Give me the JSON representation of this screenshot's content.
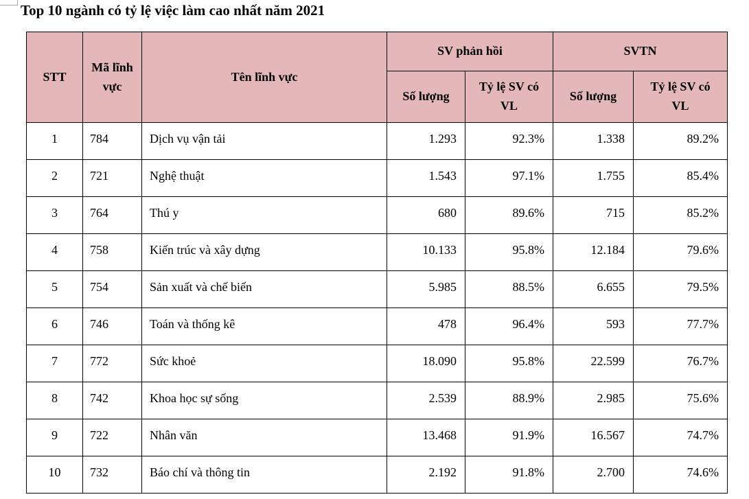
{
  "title": "Top 10 ngành có tỷ lệ việc làm cao nhất năm 2021",
  "table": {
    "headers": {
      "stt": "STT",
      "ma_linh_vuc": "Mã lĩnh vực",
      "ten_linh_vuc": "Tên lĩnh vực",
      "sv_phan_hoi": "SV phản hồi",
      "svtn": "SVTN",
      "so_luong": "Số lượng",
      "ty_le_sv_co_vl": "Tỷ lệ SV có VL"
    },
    "header_bg_color": "#e4b8b8",
    "rows": [
      {
        "stt": "1",
        "code": "784",
        "name": "Dịch vụ vận tải",
        "ph_sl": "1.293",
        "ph_tl": "92.3%",
        "tn_sl": "1.338",
        "tn_tl": "89.2%"
      },
      {
        "stt": "2",
        "code": "721",
        "name": "Nghệ thuật",
        "ph_sl": "1.543",
        "ph_tl": "97.1%",
        "tn_sl": "1.755",
        "tn_tl": "85.4%"
      },
      {
        "stt": "3",
        "code": "764",
        "name": "Thú y",
        "ph_sl": "680",
        "ph_tl": "89.6%",
        "tn_sl": "715",
        "tn_tl": "85.2%"
      },
      {
        "stt": "4",
        "code": "758",
        "name": "Kiến trúc và xây dựng",
        "ph_sl": "10.133",
        "ph_tl": "95.8%",
        "tn_sl": "12.184",
        "tn_tl": "79.6%"
      },
      {
        "stt": "5",
        "code": "754",
        "name": "Sản xuất và chế biến",
        "ph_sl": "5.985",
        "ph_tl": "88.5%",
        "tn_sl": "6.655",
        "tn_tl": "79.5%"
      },
      {
        "stt": "6",
        "code": "746",
        "name": "Toán và thống kê",
        "ph_sl": "478",
        "ph_tl": "96.4%",
        "tn_sl": "593",
        "tn_tl": "77.7%"
      },
      {
        "stt": "7",
        "code": "772",
        "name": "Sức khoẻ",
        "ph_sl": "18.090",
        "ph_tl": "95.8%",
        "tn_sl": "22.599",
        "tn_tl": "76.7%"
      },
      {
        "stt": "8",
        "code": "742",
        "name": "Khoa học sự sống",
        "ph_sl": "2.539",
        "ph_tl": "88.9%",
        "tn_sl": "2.985",
        "tn_tl": "75.6%"
      },
      {
        "stt": "9",
        "code": "722",
        "name": "Nhân văn",
        "ph_sl": "13.468",
        "ph_tl": "91.9%",
        "tn_sl": "16.567",
        "tn_tl": "74.7%"
      },
      {
        "stt": "10",
        "code": "732",
        "name": "Báo chí và thông tin",
        "ph_sl": "2.192",
        "ph_tl": "91.8%",
        "tn_sl": "2.700",
        "tn_tl": "74.6%"
      }
    ]
  }
}
